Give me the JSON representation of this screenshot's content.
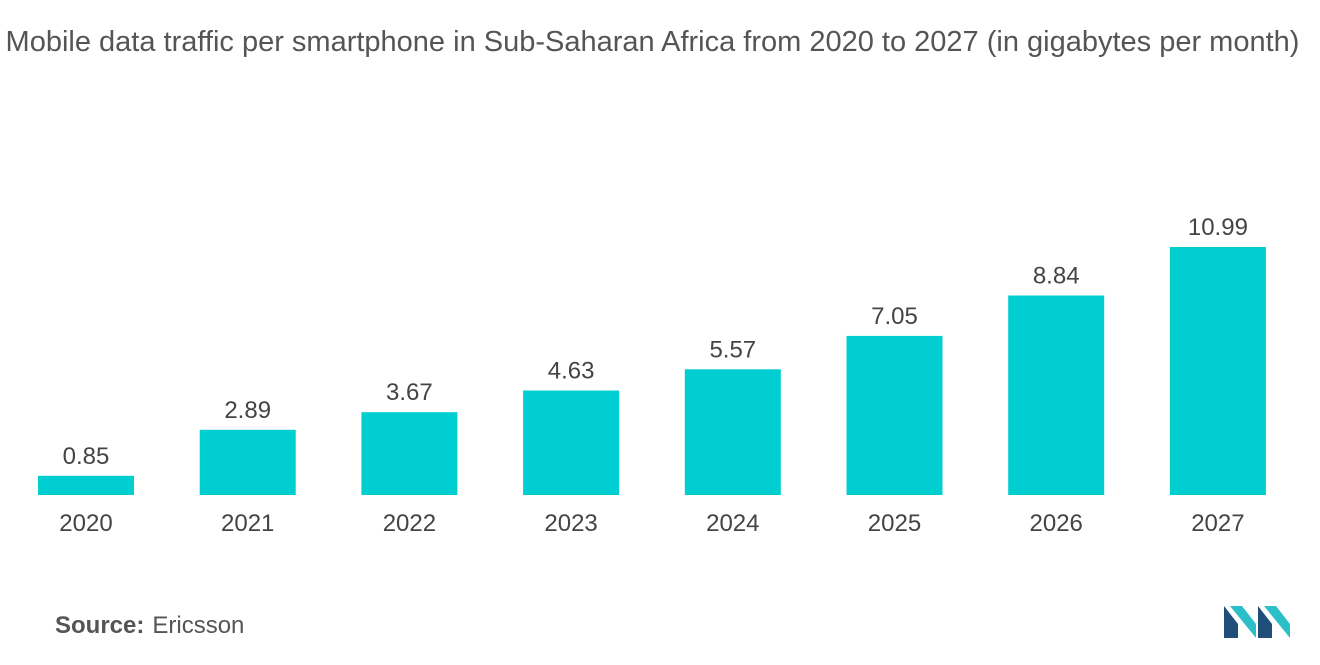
{
  "chart_data": {
    "type": "bar",
    "title": "Mobile data traffic per smartphone in Sub-Saharan Africa from 2020 to 2027 (in gigabytes per month)",
    "categories": [
      "2020",
      "2021",
      "2022",
      "2023",
      "2024",
      "2025",
      "2026",
      "2027"
    ],
    "values": [
      0.85,
      2.89,
      3.67,
      4.63,
      5.57,
      7.05,
      8.84,
      10.99
    ],
    "value_labels": [
      "0.85",
      "2.89",
      "3.67",
      "4.63",
      "5.57",
      "7.05",
      "8.84",
      "10.99"
    ],
    "xlabel": "",
    "ylabel": "",
    "ylim": [
      0,
      10.99
    ],
    "grid": false,
    "legend": "none",
    "bar_color": "#00CED1"
  },
  "source": {
    "label": "Source:",
    "value": "Ericsson"
  },
  "colors": {
    "bar": "#00CED1",
    "text": "#555555",
    "logo_dark": "#1f4e79",
    "logo_light": "#2bbfc8"
  },
  "logo": {
    "icon": "mordor-intelligence-logo-icon"
  }
}
